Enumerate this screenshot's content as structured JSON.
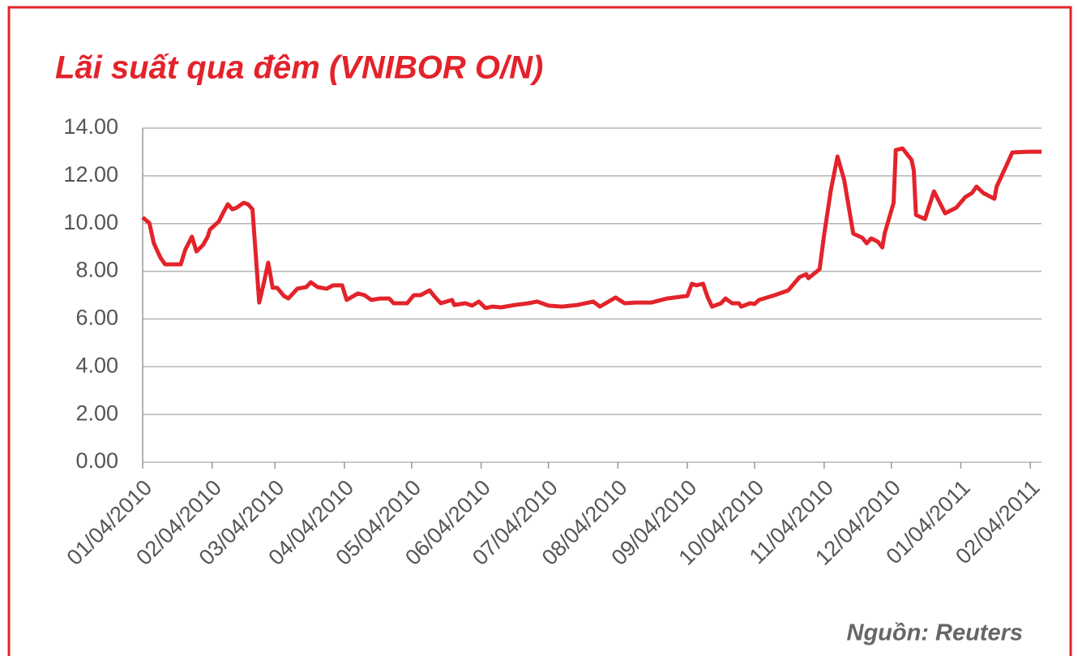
{
  "chart_data": {
    "type": "line",
    "title": "Lãi suất qua đêm (VNIBOR O/N)",
    "source": "Nguồn: Reuters",
    "x": [
      "2010-01-04",
      "2010-01-07",
      "2010-01-09",
      "2010-01-12",
      "2010-01-14",
      "2010-01-21",
      "2010-01-23",
      "2010-01-26",
      "2010-01-28",
      "2010-01-31",
      "2010-02-02",
      "2010-02-03",
      "2010-02-05",
      "2010-02-07",
      "2010-02-09",
      "2010-02-11",
      "2010-02-13",
      "2010-02-15",
      "2010-02-18",
      "2010-02-20",
      "2010-02-22",
      "2010-02-25",
      "2010-02-27",
      "2010-03-01",
      "2010-03-03",
      "2010-03-05",
      "2010-03-08",
      "2010-03-10",
      "2010-03-14",
      "2010-03-18",
      "2010-03-20",
      "2010-03-23",
      "2010-03-27",
      "2010-03-30",
      "2010-04-03",
      "2010-04-05",
      "2010-04-10",
      "2010-04-13",
      "2010-04-16",
      "2010-04-20",
      "2010-04-24",
      "2010-04-26",
      "2010-05-02",
      "2010-05-05",
      "2010-05-08",
      "2010-05-12",
      "2010-05-14",
      "2010-05-17",
      "2010-05-22",
      "2010-05-23",
      "2010-05-28",
      "2010-05-31",
      "2010-06-03",
      "2010-06-06",
      "2010-06-09",
      "2010-06-13",
      "2010-06-19",
      "2010-06-25",
      "2010-06-29",
      "2010-07-04",
      "2010-07-10",
      "2010-07-17",
      "2010-07-24",
      "2010-07-27",
      "2010-08-03",
      "2010-08-07",
      "2010-08-12",
      "2010-08-19",
      "2010-08-26",
      "2010-09-04",
      "2010-09-06",
      "2010-09-08",
      "2010-09-11",
      "2010-09-13",
      "2010-09-15",
      "2010-09-19",
      "2010-09-21",
      "2010-09-24",
      "2010-09-27",
      "2010-09-28",
      "2010-10-02",
      "2010-10-04",
      "2010-10-06",
      "2010-10-13",
      "2010-10-19",
      "2010-10-24",
      "2010-10-27",
      "2010-10-28",
      "2010-11-02",
      "2010-11-04",
      "2010-11-07",
      "2010-11-10",
      "2010-11-13",
      "2010-11-17",
      "2010-11-21",
      "2010-11-23",
      "2010-11-25",
      "2010-11-28",
      "2010-11-30",
      "2010-12-01",
      "2010-12-05",
      "2010-12-06",
      "2010-12-09",
      "2010-12-13",
      "2010-12-14",
      "2010-12-15",
      "2010-12-19",
      "2010-12-23",
      "2010-12-28",
      "2011-01-02",
      "2011-01-06",
      "2011-01-09",
      "2011-01-11",
      "2011-01-14",
      "2011-01-19",
      "2011-01-20",
      "2011-01-25",
      "2011-01-27",
      "2011-02-03",
      "2011-02-09"
    ],
    "series": [
      {
        "name": "VNIBOR O/N",
        "color": "#e3232b",
        "values": [
          10.26,
          10.02,
          9.17,
          8.56,
          8.29,
          8.29,
          8.9,
          9.45,
          8.83,
          9.11,
          9.45,
          9.75,
          9.92,
          10.09,
          10.47,
          10.81,
          10.6,
          10.67,
          10.87,
          10.81,
          10.6,
          6.69,
          7.48,
          8.36,
          7.31,
          7.31,
          6.97,
          6.86,
          7.27,
          7.34,
          7.54,
          7.34,
          7.27,
          7.41,
          7.41,
          6.8,
          7.07,
          7.0,
          6.8,
          6.86,
          6.86,
          6.66,
          6.66,
          7.0,
          7.0,
          7.2,
          6.97,
          6.66,
          6.8,
          6.59,
          6.66,
          6.56,
          6.73,
          6.46,
          6.52,
          6.49,
          6.59,
          6.66,
          6.73,
          6.56,
          6.52,
          6.59,
          6.73,
          6.52,
          6.9,
          6.66,
          6.69,
          6.69,
          6.86,
          6.97,
          7.48,
          7.41,
          7.48,
          6.93,
          6.52,
          6.66,
          6.86,
          6.66,
          6.66,
          6.52,
          6.66,
          6.63,
          6.8,
          7.0,
          7.2,
          7.75,
          7.88,
          7.71,
          8.09,
          9.51,
          11.38,
          12.81,
          11.82,
          9.58,
          9.41,
          9.17,
          9.38,
          9.24,
          9.0,
          9.58,
          10.87,
          13.08,
          13.15,
          12.67,
          12.23,
          10.36,
          10.19,
          11.35,
          10.43,
          10.67,
          11.11,
          11.28,
          11.55,
          11.28,
          11.04,
          11.55,
          12.57,
          12.98,
          13.01,
          13.01
        ]
      }
    ],
    "xlim": [
      "2010-01-04",
      "2011-02-09"
    ],
    "xticks": [
      {
        "value": "2010-01-04",
        "label": "01/04/2010"
      },
      {
        "value": "2010-02-04",
        "label": "02/04/2010"
      },
      {
        "value": "2010-03-04",
        "label": "03/04/2010"
      },
      {
        "value": "2010-04-04",
        "label": "04/04/2010"
      },
      {
        "value": "2010-05-04",
        "label": "05/04/2010"
      },
      {
        "value": "2010-06-04",
        "label": "06/04/2010"
      },
      {
        "value": "2010-07-04",
        "label": "07/04/2010"
      },
      {
        "value": "2010-08-04",
        "label": "08/04/2010"
      },
      {
        "value": "2010-09-04",
        "label": "09/04/2010"
      },
      {
        "value": "2010-10-04",
        "label": "10/04/2010"
      },
      {
        "value": "2010-11-04",
        "label": "11/04/2010"
      },
      {
        "value": "2010-12-04",
        "label": "12/04/2010"
      },
      {
        "value": "2011-01-04",
        "label": "01/04/2011"
      },
      {
        "value": "2011-02-04",
        "label": "02/04/2011"
      }
    ],
    "ylim": [
      0,
      14
    ],
    "yticks": [
      {
        "value": 0,
        "label": "0.00"
      },
      {
        "value": 2,
        "label": "2.00"
      },
      {
        "value": 4,
        "label": "4.00"
      },
      {
        "value": 6,
        "label": "6.00"
      },
      {
        "value": 8,
        "label": "8.00"
      },
      {
        "value": 10,
        "label": "10.00"
      },
      {
        "value": 12,
        "label": "12.00"
      },
      {
        "value": 14,
        "label": "14.00"
      }
    ],
    "grid": true
  }
}
